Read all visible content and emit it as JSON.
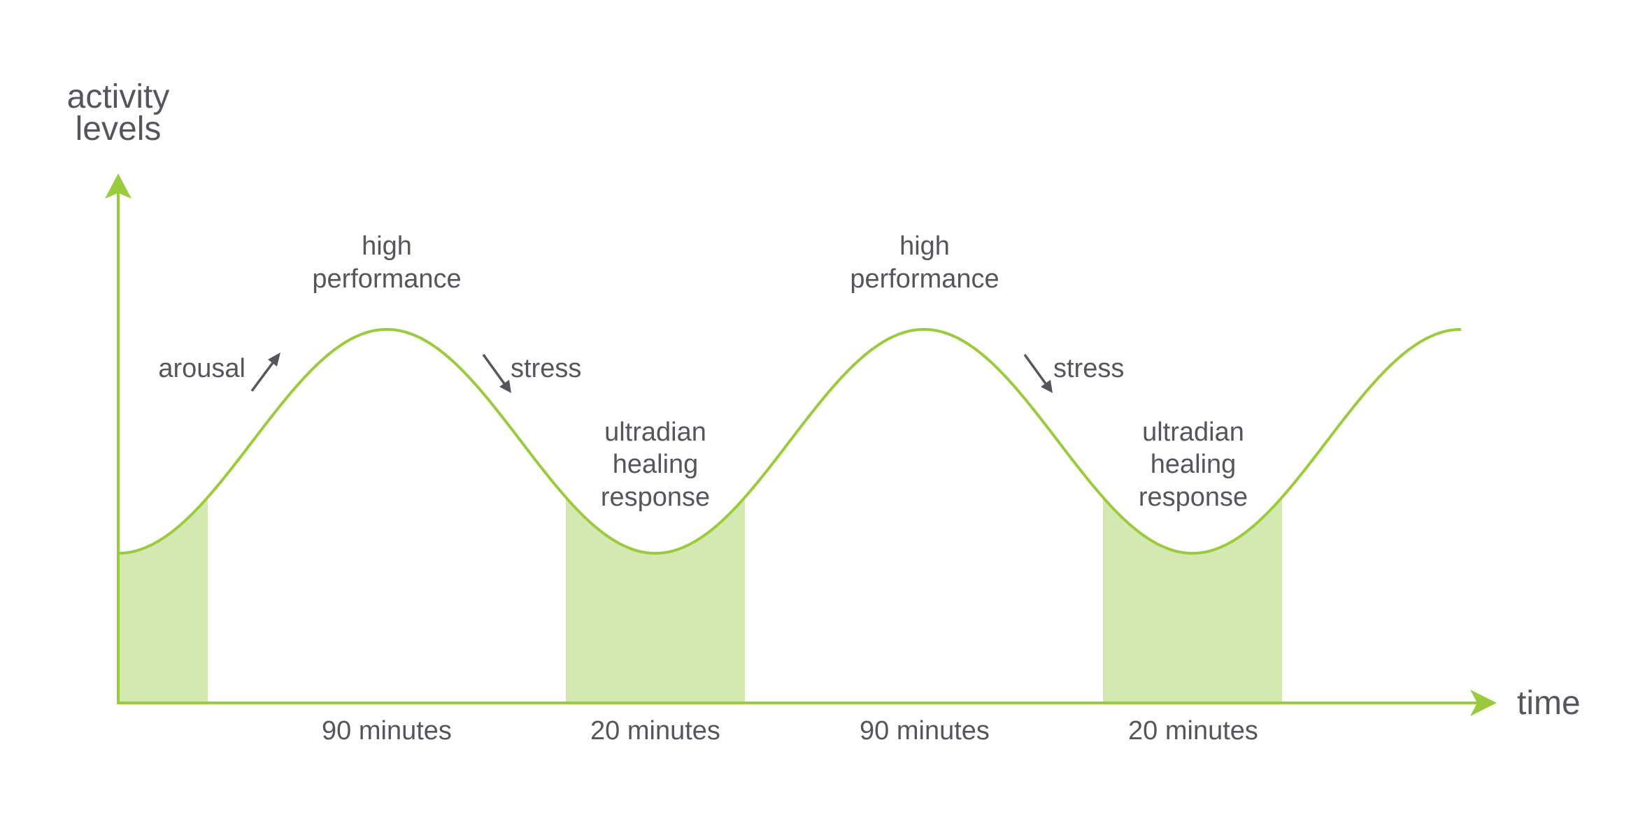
{
  "colors": {
    "curve": "#9acb3c",
    "shade": "#d6e8b2",
    "text": "#55565c",
    "arrow": "#55565c"
  },
  "chart_data": {
    "type": "line",
    "ylabel": [
      "activity",
      "levels"
    ],
    "xlabel": "time",
    "curve": "sinusoidal",
    "cycles": 2.5,
    "peak_labels": [
      [
        "high",
        "performance"
      ],
      [
        "high",
        "performance"
      ]
    ],
    "trough_labels": [
      [
        "ultradian",
        "healing",
        "response"
      ],
      [
        "ultradian",
        "healing",
        "response"
      ]
    ],
    "rise_label": "arousal",
    "fall_labels": [
      "stress",
      "stress"
    ],
    "duration_labels": [
      "90 minutes",
      "20 minutes",
      "90 minutes",
      "20 minutes"
    ]
  }
}
